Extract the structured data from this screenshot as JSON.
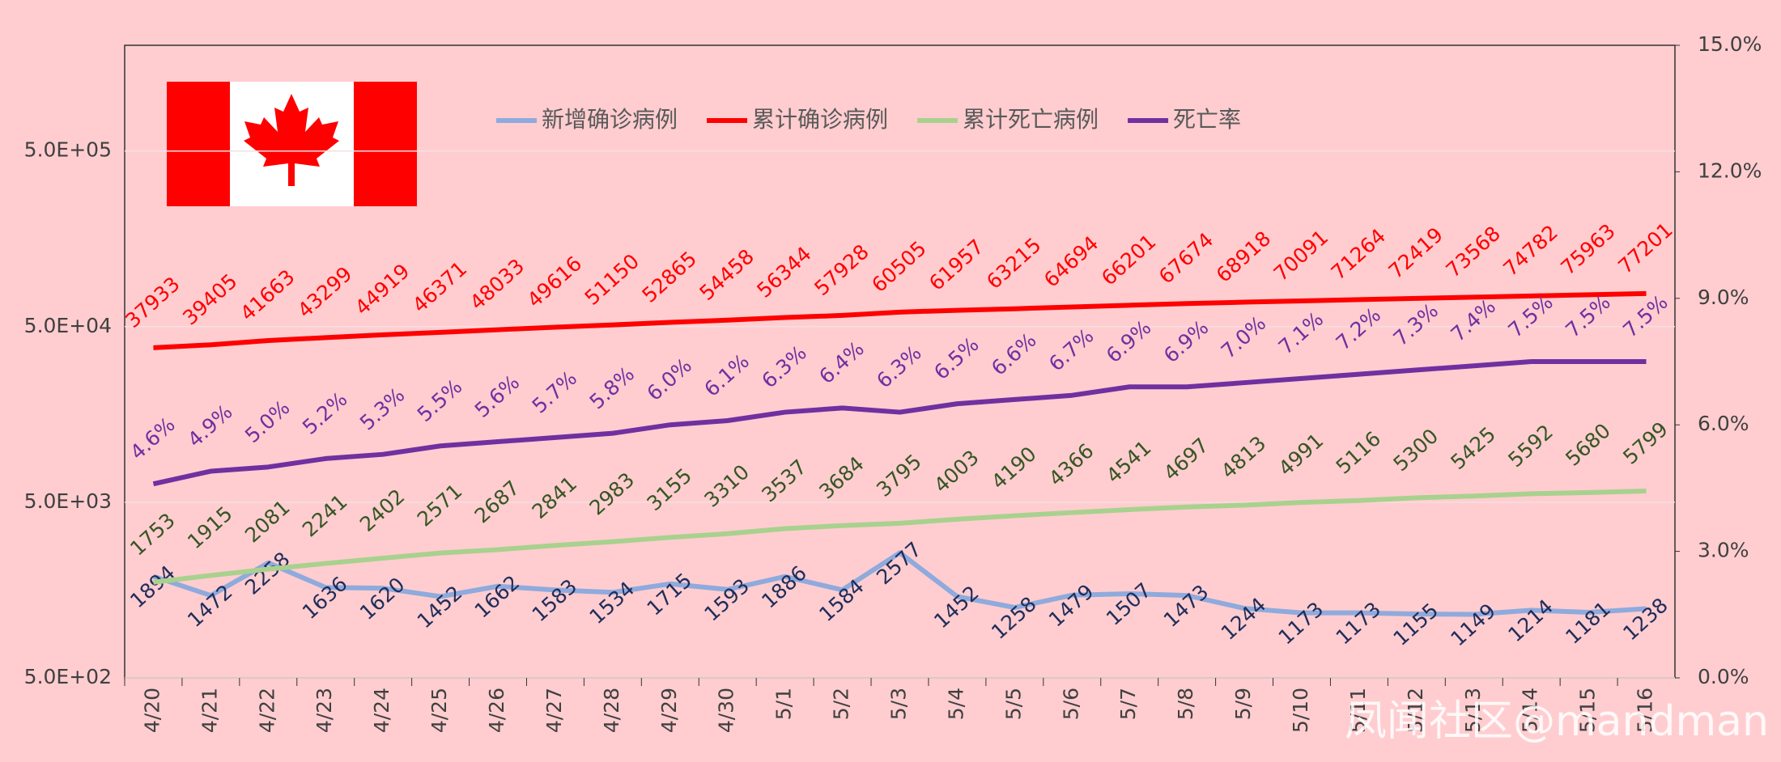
{
  "chart_data": {
    "type": "line",
    "categories": [
      "4/20",
      "4/21",
      "4/22",
      "4/23",
      "4/24",
      "4/25",
      "4/26",
      "4/27",
      "4/28",
      "4/29",
      "4/30",
      "5/1",
      "5/2",
      "5/3",
      "5/4",
      "5/5",
      "5/6",
      "5/7",
      "5/8",
      "5/9",
      "5/10",
      "5/11",
      "5/12",
      "5/13",
      "5/14",
      "5/15",
      "5/16"
    ],
    "series": [
      {
        "name": "新增确诊病例",
        "color": "#8faadc",
        "label_color": "#1f2d5a",
        "values": [
          1894,
          1472,
          2258,
          1636,
          1620,
          1452,
          1662,
          1583,
          1534,
          1715,
          1593,
          1886,
          1584,
          2577,
          1452,
          1258,
          1479,
          1507,
          1473,
          1244,
          1173,
          1173,
          1155,
          1149,
          1214,
          1181,
          1238
        ]
      },
      {
        "name": "累计确诊病例",
        "color": "#ff0000",
        "label_color": "#ff0000",
        "values": [
          37933,
          39405,
          41663,
          43299,
          44919,
          46371,
          48033,
          49616,
          51150,
          52865,
          54458,
          56344,
          57928,
          60505,
          61957,
          63215,
          64694,
          66201,
          67674,
          68918,
          70091,
          71264,
          72419,
          73568,
          74782,
          75963,
          77201
        ]
      },
      {
        "name": "累计死亡病例",
        "color": "#a9d18e",
        "label_color": "#375623",
        "values": [
          1753,
          1915,
          2081,
          2241,
          2402,
          2571,
          2687,
          2841,
          2983,
          3155,
          3310,
          3537,
          3684,
          3795,
          4003,
          4190,
          4366,
          4541,
          4697,
          4813,
          4991,
          5116,
          5300,
          5425,
          5592,
          5680,
          5799
        ]
      },
      {
        "name": "死亡率",
        "color": "#7030a0",
        "label_color": "#7030a0",
        "axis": "y2",
        "values": [
          4.6,
          4.9,
          5.0,
          5.2,
          5.3,
          5.5,
          5.6,
          5.7,
          5.8,
          6.0,
          6.1,
          6.3,
          6.4,
          6.3,
          6.5,
          6.6,
          6.7,
          6.9,
          6.9,
          7.0,
          7.1,
          7.2,
          7.3,
          7.4,
          7.5,
          7.5,
          7.5
        ],
        "value_labels": [
          "4.6%",
          "4.9%",
          "5.0%",
          "5.2%",
          "5.3%",
          "5.5%",
          "5.6%",
          "5.7%",
          "5.8%",
          "6.0%",
          "6.1%",
          "6.3%",
          "6.4%",
          "6.3%",
          "6.5%",
          "6.6%",
          "6.7%",
          "6.9%",
          "6.9%",
          "7.0%",
          "7.1%",
          "7.2%",
          "7.3%",
          "7.4%",
          "7.5%",
          "7.5%",
          "7.5%"
        ]
      }
    ],
    "ylim": [
      500,
      2000000
    ],
    "log_scale": true,
    "yticks": [
      {
        "value": 500,
        "label": "5.0E+02"
      },
      {
        "value": 5000,
        "label": "5.0E+03"
      },
      {
        "value": 50000,
        "label": "5.0E+04"
      },
      {
        "value": 500000,
        "label": "5.0E+05"
      }
    ],
    "y2lim": [
      0,
      15
    ],
    "y2ticks": [
      {
        "value": 0,
        "label": "0.0%"
      },
      {
        "value": 3,
        "label": "3.0%"
      },
      {
        "value": 6,
        "label": "6.0%"
      },
      {
        "value": 9,
        "label": "9.0%"
      },
      {
        "value": 12,
        "label": "12.0%"
      },
      {
        "value": 15,
        "label": "15.0%"
      }
    ],
    "grid": true,
    "legend": "top",
    "watermark": "凤闻社区@mandman"
  }
}
